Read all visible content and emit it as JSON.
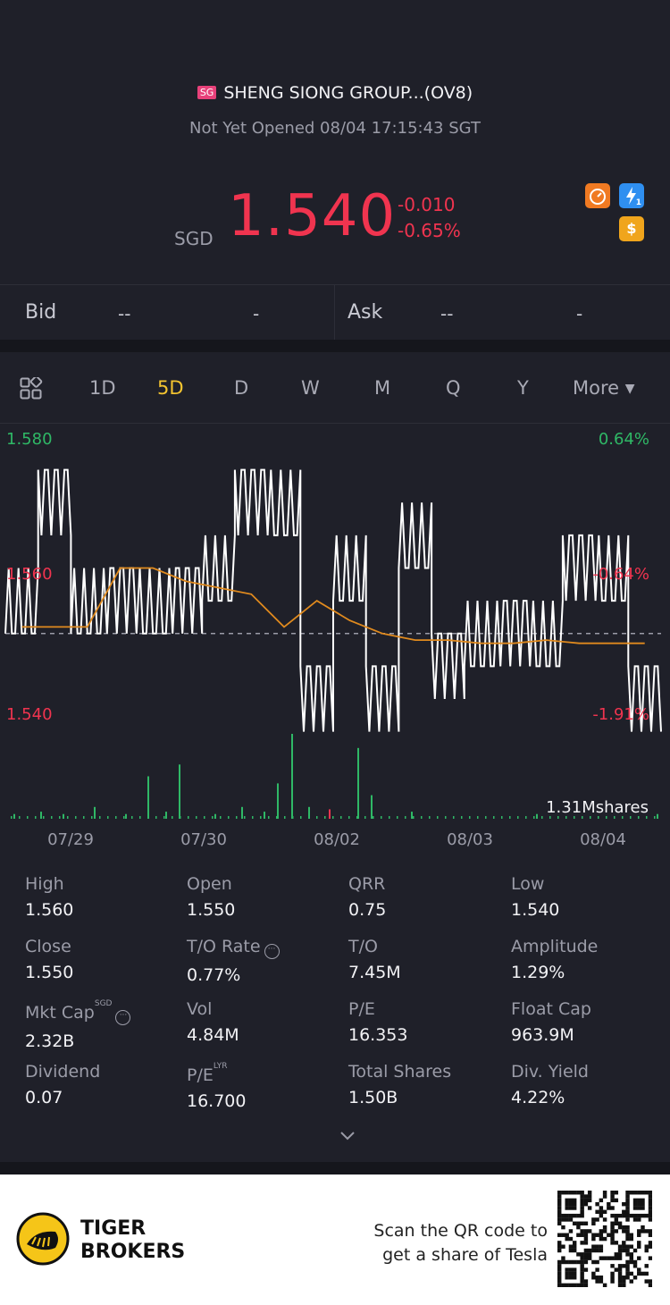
{
  "header": {
    "market_badge": "SG",
    "stock_name": "SHENG SIONG GROUP...(OV8)",
    "status": "Not Yet Opened 08/04 17:15:43 SGT",
    "currency": "SGD",
    "price": "1.540",
    "change": "-0.010",
    "change_pct": "-0.65%",
    "badges": [
      {
        "icon": "gauge-icon",
        "color": "#f07a22"
      },
      {
        "icon": "lightning-icon",
        "color": "#2f8ff0",
        "sub": "1"
      },
      {
        "icon": "dollar-icon",
        "glyph": "$",
        "color": "#f0a51c"
      }
    ]
  },
  "quote": {
    "bid_label": "Bid",
    "bid_price": "--",
    "bid_size": "-",
    "ask_label": "Ask",
    "ask_price": "--",
    "ask_size": "-"
  },
  "tabs": [
    "1D",
    "5D",
    "D",
    "W",
    "M",
    "Q",
    "Y",
    "More"
  ],
  "active_tab": "5D",
  "chart_data": {
    "type": "line",
    "title": "",
    "y_left_ticks": [
      "1.580",
      "1.560",
      "1.540"
    ],
    "y_right_ticks": [
      "0.64%",
      "-0.64%",
      "-1.91%"
    ],
    "ylim": [
      1.54,
      1.58
    ],
    "prev_close": 1.55,
    "x_labels": [
      "07/29",
      "07/30",
      "08/02",
      "08/03",
      "08/04"
    ],
    "volume_label": "1.31Mshares",
    "price_levels": [
      1.55,
      1.575,
      1.55,
      1.56,
      1.55,
      1.56,
      1.555,
      1.575,
      1.565,
      1.545,
      1.555,
      1.545,
      1.56,
      1.55,
      1.545,
      1.555,
      1.545,
      1.565,
      1.555,
      1.545
    ],
    "avg_line": [
      1.551,
      1.551,
      1.551,
      1.56,
      1.56,
      1.558,
      1.557,
      1.556,
      1.551,
      1.555,
      1.552,
      1.55,
      1.549,
      1.549,
      1.5485,
      1.5485,
      1.549,
      1.5485,
      1.5485,
      1.5485
    ],
    "volume": [
      0.02,
      0.03,
      0.02,
      0.05,
      0.02,
      0.18,
      0.03,
      0.23,
      0.02,
      0.05,
      0.03,
      0.15,
      0.36,
      0.05,
      0.04,
      0.3,
      0.1,
      0.03,
      0.02,
      0.02
    ]
  },
  "stats": [
    {
      "label": "High",
      "value": "1.560"
    },
    {
      "label": "Open",
      "value": "1.550"
    },
    {
      "label": "QRR",
      "value": "0.75"
    },
    {
      "label": "Low",
      "value": "1.540"
    },
    {
      "label": "Close",
      "value": "1.550"
    },
    {
      "label": "T/O Rate",
      "value": "0.77%",
      "info": true
    },
    {
      "label": "T/O",
      "value": "7.45M"
    },
    {
      "label": "Amplitude",
      "value": "1.29%"
    },
    {
      "label": "Mkt Cap",
      "value": "2.32B",
      "sup": "SGD",
      "info": true
    },
    {
      "label": "Vol",
      "value": "4.84M"
    },
    {
      "label": "P/E",
      "value": "16.353"
    },
    {
      "label": "Float Cap",
      "value": "963.9M"
    },
    {
      "label": "Dividend",
      "value": "0.07"
    },
    {
      "label": "P/E",
      "value": "16.700",
      "sup": "LYR"
    },
    {
      "label": "Total Shares",
      "value": "1.50B"
    },
    {
      "label": "Div. Yield",
      "value": "4.22%"
    }
  ],
  "footer": {
    "brand_line1": "TIGER",
    "brand_line2": "BROKERS",
    "scan_line1": "Scan the QR code to",
    "scan_line2": "get a share of Tesla"
  }
}
